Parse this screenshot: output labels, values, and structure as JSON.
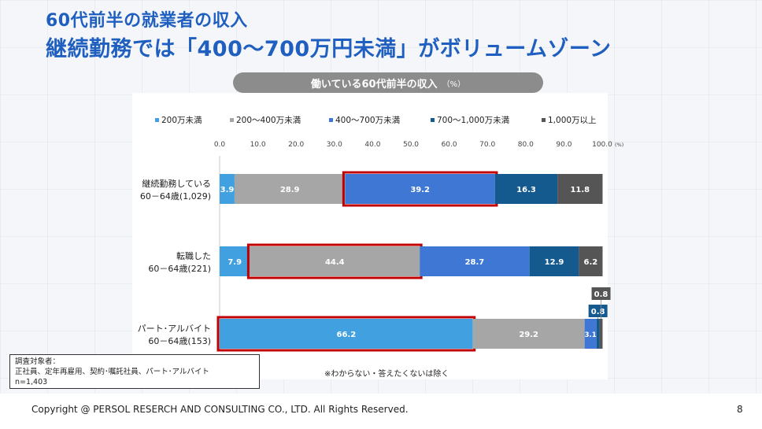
{
  "slide": {
    "title_line1": "60代前半の就業者の収入",
    "title_line2": "継続勤務では「400～700万円未満」がボリュームゾーン",
    "footer": "Copyright @ PERSOL RESERCH AND CONSULTING CO., LTD. All Rights Reserved.",
    "page_number": "8",
    "survey_label": "調査対象者：",
    "survey_targets": "正社員、定年再雇用、契約･嘱託社員、パート･アルバイト",
    "survey_n": "n=1,403"
  },
  "chart_data": {
    "type": "bar",
    "orientation": "horizontal",
    "stacked": true,
    "title": "働いている60代前半の収入",
    "title_unit": "（%）",
    "note": "※わからない・答えたくないは除く",
    "xlim": [
      0,
      100
    ],
    "x_ticks": [
      "0.0",
      "10.0",
      "20.0",
      "30.0",
      "40.0",
      "50.0",
      "60.0",
      "70.0",
      "80.0",
      "90.0",
      "100.0"
    ],
    "x_unit": "(%)",
    "legend_position": "top",
    "series": [
      {
        "name": "200万未満",
        "color": "#41a0e0"
      },
      {
        "name": "200～400万未満",
        "color": "#a6a6a6"
      },
      {
        "name": "400～700万未満",
        "color": "#3e78d4"
      },
      {
        "name": "700～1,000万未満",
        "color": "#155a8f"
      },
      {
        "name": "1,000万以上",
        "color": "#555555"
      }
    ],
    "categories": [
      {
        "line1": "継続勤務している",
        "line2": "60－64歳(1,029)",
        "values": [
          3.9,
          28.9,
          39.2,
          16.3,
          11.8
        ],
        "highlight": 2
      },
      {
        "line1": "転職した",
        "line2": "60－64歳(221)",
        "values": [
          7.9,
          44.4,
          28.7,
          12.9,
          6.2
        ],
        "highlight": 1
      },
      {
        "line1": "パート･アルバイト",
        "line2": "60－64歳(153)",
        "values": [
          66.2,
          29.2,
          3.1,
          0.8,
          0.8
        ],
        "highlight": 0
      }
    ]
  }
}
